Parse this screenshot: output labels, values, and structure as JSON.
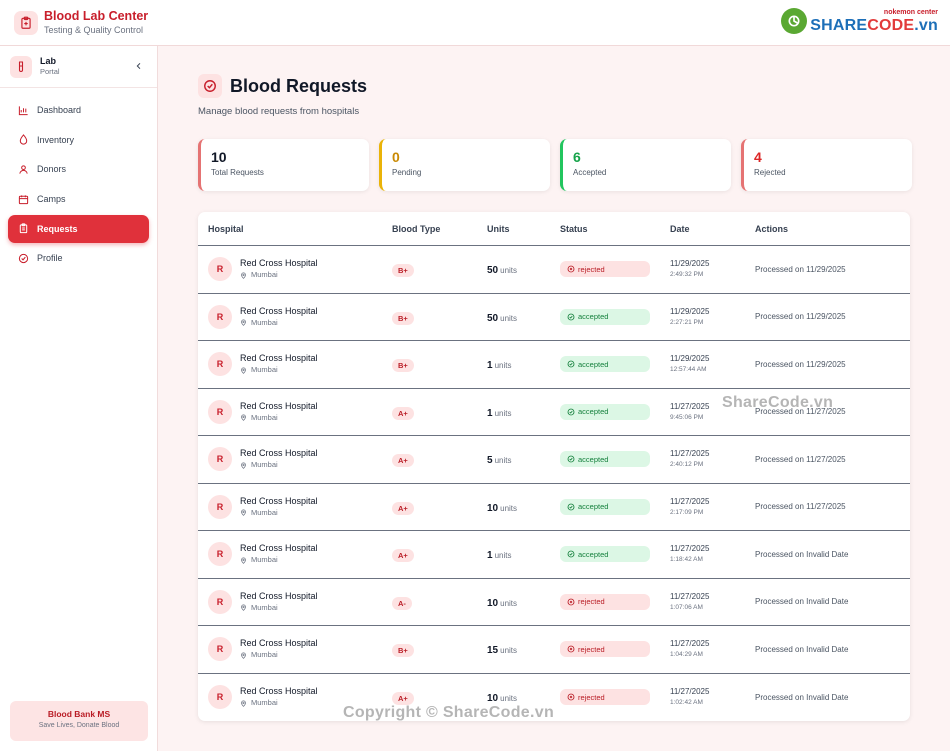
{
  "app": {
    "title": "Blood Lab Center",
    "subtitle": "Testing & Quality Control"
  },
  "logo": {
    "small": "nokemon center",
    "big_a": "SHARE",
    "big_b": "CODE",
    "big_c": ".vn"
  },
  "sidebar": {
    "portal_title": "Lab",
    "portal_sub": "Portal",
    "items": [
      {
        "label": "Dashboard",
        "icon": "bar-chart-icon"
      },
      {
        "label": "Inventory",
        "icon": "droplet-icon"
      },
      {
        "label": "Donors",
        "icon": "user-icon"
      },
      {
        "label": "Camps",
        "icon": "calendar-icon"
      },
      {
        "label": "Requests",
        "icon": "clipboard-icon"
      },
      {
        "label": "Profile",
        "icon": "check-circle-icon"
      }
    ],
    "footer_title": "Blood Bank MS",
    "footer_sub": "Save Lives, Donate Blood"
  },
  "page": {
    "title": "Blood Requests",
    "subtitle": "Manage blood requests from hospitals"
  },
  "stats": [
    {
      "value": "10",
      "label": "Total Requests",
      "color": "#111827",
      "border": "#e57373"
    },
    {
      "value": "0",
      "label": "Pending",
      "color": "#ca8a04",
      "border": "#eab308"
    },
    {
      "value": "6",
      "label": "Accepted",
      "color": "#16a34a",
      "border": "#22c55e"
    },
    {
      "value": "4",
      "label": "Rejected",
      "color": "#dc2626",
      "border": "#e57373"
    }
  ],
  "table": {
    "headers": [
      "Hospital",
      "Blood Type",
      "Units",
      "Status",
      "Date",
      "Actions"
    ],
    "units_suffix": "units",
    "rows": [
      {
        "initial": "R",
        "hospital": "Red Cross Hospital",
        "city": "Mumbai",
        "blood": "B+",
        "units": "50",
        "status": "rejected",
        "date": "11/29/2025",
        "time": "2:49:32 PM",
        "action": "Processed on 11/29/2025"
      },
      {
        "initial": "R",
        "hospital": "Red Cross Hospital",
        "city": "Mumbai",
        "blood": "B+",
        "units": "50",
        "status": "accepted",
        "date": "11/29/2025",
        "time": "2:27:21 PM",
        "action": "Processed on 11/29/2025"
      },
      {
        "initial": "R",
        "hospital": "Red Cross Hospital",
        "city": "Mumbai",
        "blood": "B+",
        "units": "1",
        "status": "accepted",
        "date": "11/29/2025",
        "time": "12:57:44 AM",
        "action": "Processed on 11/29/2025"
      },
      {
        "initial": "R",
        "hospital": "Red Cross Hospital",
        "city": "Mumbai",
        "blood": "A+",
        "units": "1",
        "status": "accepted",
        "date": "11/27/2025",
        "time": "9:45:06 PM",
        "action": "Processed on 11/27/2025"
      },
      {
        "initial": "R",
        "hospital": "Red Cross Hospital",
        "city": "Mumbai",
        "blood": "A+",
        "units": "5",
        "status": "accepted",
        "date": "11/27/2025",
        "time": "2:40:12 PM",
        "action": "Processed on 11/27/2025"
      },
      {
        "initial": "R",
        "hospital": "Red Cross Hospital",
        "city": "Mumbai",
        "blood": "A+",
        "units": "10",
        "status": "accepted",
        "date": "11/27/2025",
        "time": "2:17:09 PM",
        "action": "Processed on 11/27/2025"
      },
      {
        "initial": "R",
        "hospital": "Red Cross Hospital",
        "city": "Mumbai",
        "blood": "A+",
        "units": "1",
        "status": "accepted",
        "date": "11/27/2025",
        "time": "1:18:42 AM",
        "action": "Processed on Invalid Date"
      },
      {
        "initial": "R",
        "hospital": "Red Cross Hospital",
        "city": "Mumbai",
        "blood": "A-",
        "units": "10",
        "status": "rejected",
        "date": "11/27/2025",
        "time": "1:07:06 AM",
        "action": "Processed on Invalid Date"
      },
      {
        "initial": "R",
        "hospital": "Red Cross Hospital",
        "city": "Mumbai",
        "blood": "B+",
        "units": "15",
        "status": "rejected",
        "date": "11/27/2025",
        "time": "1:04:29 AM",
        "action": "Processed on Invalid Date"
      },
      {
        "initial": "R",
        "hospital": "Red Cross Hospital",
        "city": "Mumbai",
        "blood": "A+",
        "units": "10",
        "status": "rejected",
        "date": "11/27/2025",
        "time": "1:02:42 AM",
        "action": "Processed on Invalid Date"
      }
    ]
  },
  "watermarks": {
    "mid": "ShareCode.vn",
    "bottom": "Copyright © ShareCode.vn"
  }
}
